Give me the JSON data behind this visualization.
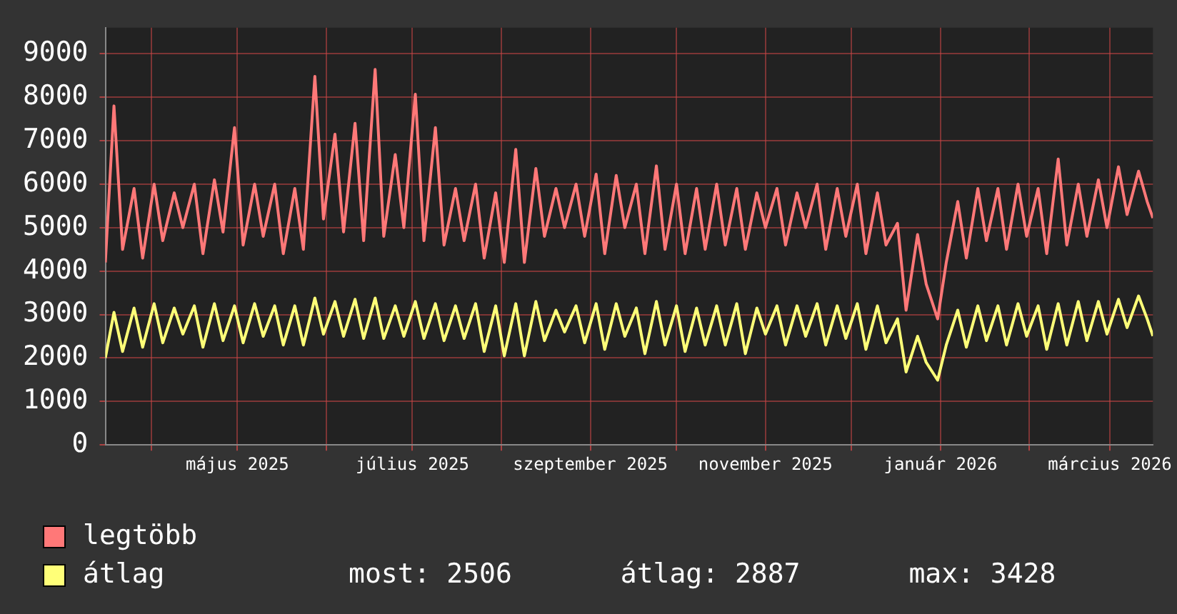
{
  "chart_data": {
    "type": "line",
    "x": [
      "2025-03-16",
      "2025-03-19",
      "2025-03-22",
      "2025-03-26",
      "2025-03-29",
      "2025-04-02",
      "2025-04-05",
      "2025-04-09",
      "2025-04-12",
      "2025-04-16",
      "2025-04-19",
      "2025-04-23",
      "2025-04-26",
      "2025-04-30",
      "2025-05-03",
      "2025-05-07",
      "2025-05-10",
      "2025-05-14",
      "2025-05-17",
      "2025-05-21",
      "2025-05-24",
      "2025-05-28",
      "2025-05-31",
      "2025-06-04",
      "2025-06-07",
      "2025-06-11",
      "2025-06-14",
      "2025-06-18",
      "2025-06-21",
      "2025-06-25",
      "2025-06-28",
      "2025-07-02",
      "2025-07-05",
      "2025-07-09",
      "2025-07-12",
      "2025-07-16",
      "2025-07-19",
      "2025-07-23",
      "2025-07-26",
      "2025-07-30",
      "2025-08-02",
      "2025-08-06",
      "2025-08-09",
      "2025-08-13",
      "2025-08-16",
      "2025-08-20",
      "2025-08-23",
      "2025-08-27",
      "2025-08-30",
      "2025-09-03",
      "2025-09-06",
      "2025-09-10",
      "2025-09-13",
      "2025-09-17",
      "2025-09-20",
      "2025-09-24",
      "2025-09-27",
      "2025-10-01",
      "2025-10-04",
      "2025-10-08",
      "2025-10-11",
      "2025-10-15",
      "2025-10-18",
      "2025-10-22",
      "2025-10-25",
      "2025-10-29",
      "2025-11-01",
      "2025-11-05",
      "2025-11-08",
      "2025-11-12",
      "2025-11-15",
      "2025-11-19",
      "2025-11-22",
      "2025-11-26",
      "2025-11-29",
      "2025-12-03",
      "2025-12-06",
      "2025-12-10",
      "2025-12-13",
      "2025-12-17",
      "2025-12-20",
      "2025-12-24",
      "2025-12-27",
      "2025-12-31",
      "2026-01-03",
      "2026-01-07",
      "2026-01-10",
      "2026-01-14",
      "2026-01-17",
      "2026-01-21",
      "2026-01-24",
      "2026-01-28",
      "2026-01-31",
      "2026-02-04",
      "2026-02-07",
      "2026-02-11",
      "2026-02-14",
      "2026-02-18",
      "2026-02-21",
      "2026-02-25",
      "2026-02-28",
      "2026-03-04",
      "2026-03-07",
      "2026-03-11",
      "2026-03-14",
      "2026-03-16"
    ],
    "series": [
      {
        "name": "legtöbb",
        "color": "#ff7878",
        "values": [
          4200,
          7800,
          4500,
          5900,
          4300,
          6000,
          4700,
          5800,
          5000,
          6000,
          4400,
          6100,
          4900,
          7300,
          4600,
          6000,
          4800,
          6000,
          4400,
          5900,
          4500,
          8480,
          5200,
          7150,
          4900,
          7400,
          4700,
          8640,
          4800,
          6680,
          5000,
          8070,
          4700,
          7300,
          4600,
          5900,
          4700,
          6000,
          4300,
          5800,
          4200,
          6800,
          4200,
          6360,
          4800,
          5900,
          5000,
          6000,
          4800,
          6230,
          4400,
          6200,
          5000,
          6000,
          4400,
          6420,
          4500,
          6000,
          4400,
          5900,
          4500,
          6000,
          4600,
          5900,
          4500,
          5800,
          5000,
          5900,
          4600,
          5800,
          5000,
          6000,
          4500,
          5900,
          4800,
          6000,
          4400,
          5800,
          4600,
          5100,
          3100,
          4840,
          3700,
          2900,
          4200,
          5600,
          4300,
          5900,
          4700,
          5900,
          4500,
          6000,
          4800,
          5900,
          4400,
          6580,
          4600,
          6000,
          4800,
          6100,
          5000,
          6400,
          5300,
          6300,
          5600,
          5220
        ]
      },
      {
        "name": "átlag",
        "color": "#ffff78",
        "values": [
          2000,
          3050,
          2150,
          3150,
          2250,
          3250,
          2350,
          3150,
          2550,
          3200,
          2250,
          3250,
          2400,
          3200,
          2350,
          3250,
          2500,
          3200,
          2300,
          3200,
          2300,
          3380,
          2550,
          3300,
          2500,
          3350,
          2450,
          3380,
          2450,
          3200,
          2500,
          3300,
          2450,
          3250,
          2400,
          3200,
          2450,
          3250,
          2150,
          3200,
          2050,
          3250,
          2050,
          3300,
          2400,
          3100,
          2600,
          3200,
          2350,
          3250,
          2200,
          3250,
          2500,
          3150,
          2100,
          3300,
          2300,
          3200,
          2150,
          3150,
          2300,
          3200,
          2300,
          3250,
          2100,
          3150,
          2550,
          3200,
          2300,
          3200,
          2500,
          3250,
          2300,
          3200,
          2450,
          3250,
          2200,
          3200,
          2350,
          2900,
          1680,
          2500,
          1900,
          1490,
          2300,
          3100,
          2250,
          3200,
          2400,
          3200,
          2300,
          3250,
          2500,
          3200,
          2200,
          3250,
          2300,
          3300,
          2400,
          3300,
          2550,
          3350,
          2700,
          3428,
          2900,
          2506
        ]
      }
    ],
    "xlim": [
      "2025-03-16",
      "2026-03-16"
    ],
    "xticks": [
      {
        "value": "2025-04-01",
        "label": null
      },
      {
        "value": "2025-05-01",
        "label": "május 2025"
      },
      {
        "value": "2025-06-01",
        "label": null
      },
      {
        "value": "2025-07-01",
        "label": "július 2025"
      },
      {
        "value": "2025-08-01",
        "label": null
      },
      {
        "value": "2025-09-01",
        "label": "szeptember 2025"
      },
      {
        "value": "2025-10-01",
        "label": null
      },
      {
        "value": "2025-11-01",
        "label": "november 2025"
      },
      {
        "value": "2025-12-01",
        "label": null
      },
      {
        "value": "2026-01-01",
        "label": "január 2026"
      },
      {
        "value": "2026-02-01",
        "label": null
      },
      {
        "value": "2026-03-01",
        "label": "március 2026"
      }
    ],
    "ylim": [
      0,
      9600
    ],
    "yticks": [
      0,
      1000,
      2000,
      3000,
      4000,
      5000,
      6000,
      7000,
      8000,
      9000
    ],
    "grid": true,
    "legend": "bottom",
    "marker": "none",
    "line_style": "solid",
    "annotations": [
      "most: 2506",
      "átlag: 2887",
      "max: 3428"
    ]
  }
}
